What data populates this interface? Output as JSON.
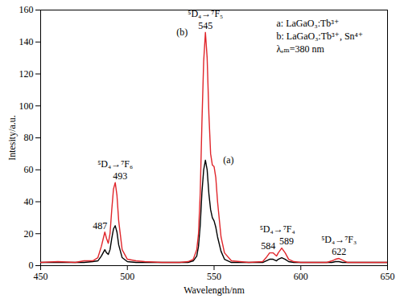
{
  "chart_data": {
    "type": "line",
    "x_label": "Wavelength/nm",
    "y_label": "Intesity/a.u.",
    "x": [
      450,
      460,
      470,
      475,
      480,
      483,
      485,
      487,
      488,
      489,
      490,
      491,
      492,
      493,
      494,
      495,
      497,
      500,
      505,
      510,
      520,
      530,
      535,
      538,
      540,
      541,
      542,
      543,
      544,
      545,
      546,
      547,
      548,
      549,
      550,
      551,
      552,
      554,
      556,
      560,
      570,
      578,
      580,
      582,
      584,
      586,
      587,
      589,
      591,
      593,
      596,
      600,
      610,
      615,
      618,
      620,
      622,
      624,
      627,
      630,
      640,
      650
    ],
    "series": [
      {
        "name": "a: LaGaO₃:Tb³⁺",
        "color": "#000000",
        "values": [
          2,
          2,
          2,
          2,
          2.5,
          3,
          6,
          10,
          8,
          7,
          10,
          17,
          23,
          25,
          21,
          13,
          5,
          2.5,
          2,
          2,
          2,
          2,
          2,
          3,
          6,
          12,
          25,
          46,
          60,
          66,
          60,
          45,
          35,
          30,
          28,
          24,
          18,
          9,
          4,
          2,
          2,
          2,
          3,
          4,
          4,
          3,
          4,
          5,
          4,
          2.5,
          2,
          2,
          2,
          2,
          2,
          2.5,
          2.5,
          2,
          2,
          2,
          2,
          2
        ]
      },
      {
        "name": "b: LaGaO₃:Tb³⁺, Sn⁴⁺",
        "color": "#e0262b",
        "values": [
          2,
          2.5,
          2,
          3,
          3,
          5,
          12,
          21,
          17,
          14,
          20,
          35,
          48,
          52,
          44,
          28,
          10,
          4,
          3,
          2.5,
          2,
          2,
          2.5,
          4,
          10,
          20,
          45,
          90,
          128,
          146,
          130,
          95,
          70,
          63,
          62,
          55,
          40,
          18,
          8,
          3,
          2,
          2.5,
          5,
          8,
          8,
          6,
          8,
          11,
          8,
          4,
          2.5,
          2,
          2,
          2,
          3,
          4,
          4.5,
          3.5,
          2,
          2,
          2,
          2
        ]
      }
    ],
    "xlim": [
      450,
      650
    ],
    "xticks": [
      450,
      500,
      550,
      600,
      650
    ],
    "ylim": [
      0,
      160
    ],
    "yticks": [
      0,
      20,
      40,
      60,
      80,
      100,
      120,
      140,
      160
    ],
    "grid": false,
    "legend": "top-right",
    "legend_note": "λₑₘ=380 nm",
    "peak_labels": [
      {
        "x": 487,
        "label": "487"
      },
      {
        "x": 493,
        "label": "493"
      },
      {
        "x": 545,
        "label": "545"
      },
      {
        "x": 584,
        "label": "584"
      },
      {
        "x": 589,
        "label": "589"
      },
      {
        "x": 622,
        "label": "622"
      }
    ],
    "transitions": [
      {
        "text": "⁵D₄→⁷F₆",
        "peaks": [
          493
        ]
      },
      {
        "text": "⁵D₄→⁷F₅",
        "peaks": [
          545
        ]
      },
      {
        "text": "⁵D₄→⁷F₄",
        "peaks": [
          584,
          589
        ]
      },
      {
        "text": "⁵D₄→⁷F₃",
        "peaks": [
          622
        ]
      }
    ],
    "annotations": [
      {
        "text": "(a)",
        "points_to": "a: LaGaO₃:Tb³⁺"
      },
      {
        "text": "(b)",
        "points_to": "b: LaGaO₃:Tb³⁺, Sn⁴⁺"
      }
    ]
  }
}
